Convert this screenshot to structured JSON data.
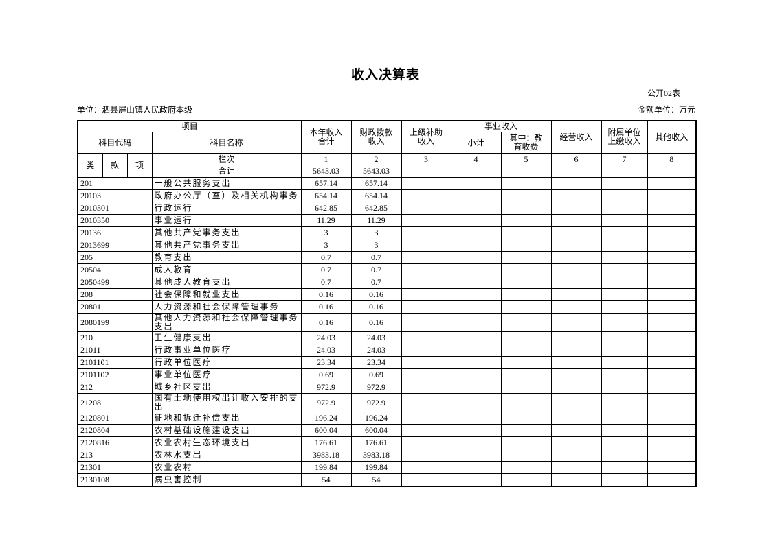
{
  "page": {
    "title": "收入决算表",
    "form_label": "公开02表",
    "unit_label": "单位：泗县屏山镇人民政府本级",
    "amount_unit_label": "金额单位：万元"
  },
  "table": {
    "header": {
      "project": "项目",
      "subject_code": "科目代码",
      "subject_name": "科目名称",
      "class_label": "类",
      "section_label": "款",
      "item_label": "项",
      "column_index_label": "栏次",
      "total_row_label": "合计",
      "current_year_income_total": "本年收入\n合计",
      "fiscal_grant_income": "财政拨款\n收入",
      "superior_subsidy_income": "上级补助\n收入",
      "business_income": "事业收入",
      "business_income_subtotal": "小计",
      "business_income_education_fee": "其中：教\n育收费",
      "operating_income": "经营收入",
      "affiliated_unit_income": "附属单位\n上缴收入",
      "other_income": "其他收入",
      "column_numbers": [
        "1",
        "2",
        "3",
        "4",
        "5",
        "6",
        "7",
        "8"
      ]
    },
    "total_row": {
      "values": [
        "5643.03",
        "5643.03",
        "",
        "",
        "",
        "",
        "",
        ""
      ]
    },
    "rows": [
      {
        "code": "201",
        "name": "一般公共服务支出",
        "values": [
          "657.14",
          "657.14",
          "",
          "",
          "",
          "",
          "",
          ""
        ]
      },
      {
        "code": "20103",
        "name": "政府办公厅（室）及相关机构事务",
        "values": [
          "654.14",
          "654.14",
          "",
          "",
          "",
          "",
          "",
          ""
        ]
      },
      {
        "code": "2010301",
        "name": "行政运行",
        "values": [
          "642.85",
          "642.85",
          "",
          "",
          "",
          "",
          "",
          ""
        ]
      },
      {
        "code": "2010350",
        "name": "事业运行",
        "values": [
          "11.29",
          "11.29",
          "",
          "",
          "",
          "",
          "",
          ""
        ]
      },
      {
        "code": "20136",
        "name": "其他共产党事务支出",
        "values": [
          "3",
          "3",
          "",
          "",
          "",
          "",
          "",
          ""
        ]
      },
      {
        "code": "2013699",
        "name": "其他共产党事务支出",
        "values": [
          "3",
          "3",
          "",
          "",
          "",
          "",
          "",
          ""
        ]
      },
      {
        "code": "205",
        "name": "教育支出",
        "values": [
          "0.7",
          "0.7",
          "",
          "",
          "",
          "",
          "",
          ""
        ]
      },
      {
        "code": "20504",
        "name": "成人教育",
        "values": [
          "0.7",
          "0.7",
          "",
          "",
          "",
          "",
          "",
          ""
        ]
      },
      {
        "code": "2050499",
        "name": "其他成人教育支出",
        "values": [
          "0.7",
          "0.7",
          "",
          "",
          "",
          "",
          "",
          ""
        ]
      },
      {
        "code": "208",
        "name": "社会保障和就业支出",
        "values": [
          "0.16",
          "0.16",
          "",
          "",
          "",
          "",
          "",
          ""
        ]
      },
      {
        "code": "20801",
        "name": "人力资源和社会保障管理事务",
        "values": [
          "0.16",
          "0.16",
          "",
          "",
          "",
          "",
          "",
          ""
        ]
      },
      {
        "code": "2080199",
        "name": "其他人力资源和社会保障管理事务支出",
        "values": [
          "0.16",
          "0.16",
          "",
          "",
          "",
          "",
          "",
          ""
        ]
      },
      {
        "code": "210",
        "name": "卫生健康支出",
        "values": [
          "24.03",
          "24.03",
          "",
          "",
          "",
          "",
          "",
          ""
        ]
      },
      {
        "code": "21011",
        "name": "行政事业单位医疗",
        "values": [
          "24.03",
          "24.03",
          "",
          "",
          "",
          "",
          "",
          ""
        ]
      },
      {
        "code": "2101101",
        "name": "行政单位医疗",
        "values": [
          "23.34",
          "23.34",
          "",
          "",
          "",
          "",
          "",
          ""
        ]
      },
      {
        "code": "2101102",
        "name": "事业单位医疗",
        "values": [
          "0.69",
          "0.69",
          "",
          "",
          "",
          "",
          "",
          ""
        ]
      },
      {
        "code": "212",
        "name": "城乡社区支出",
        "values": [
          "972.9",
          "972.9",
          "",
          "",
          "",
          "",
          "",
          ""
        ]
      },
      {
        "code": "21208",
        "name": "国有土地使用权出让收入安排的支出",
        "values": [
          "972.9",
          "972.9",
          "",
          "",
          "",
          "",
          "",
          ""
        ]
      },
      {
        "code": "2120801",
        "name": "征地和拆迁补偿支出",
        "values": [
          "196.24",
          "196.24",
          "",
          "",
          "",
          "",
          "",
          ""
        ]
      },
      {
        "code": "2120804",
        "name": "农村基础设施建设支出",
        "values": [
          "600.04",
          "600.04",
          "",
          "",
          "",
          "",
          "",
          ""
        ]
      },
      {
        "code": "2120816",
        "name": "农业农村生态环境支出",
        "values": [
          "176.61",
          "176.61",
          "",
          "",
          "",
          "",
          "",
          ""
        ]
      },
      {
        "code": "213",
        "name": "农林水支出",
        "values": [
          "3983.18",
          "3983.18",
          "",
          "",
          "",
          "",
          "",
          ""
        ]
      },
      {
        "code": "21301",
        "name": "农业农村",
        "values": [
          "199.84",
          "199.84",
          "",
          "",
          "",
          "",
          "",
          ""
        ]
      },
      {
        "code": "2130108",
        "name": "病虫害控制",
        "values": [
          "54",
          "54",
          "",
          "",
          "",
          "",
          "",
          ""
        ]
      }
    ]
  }
}
